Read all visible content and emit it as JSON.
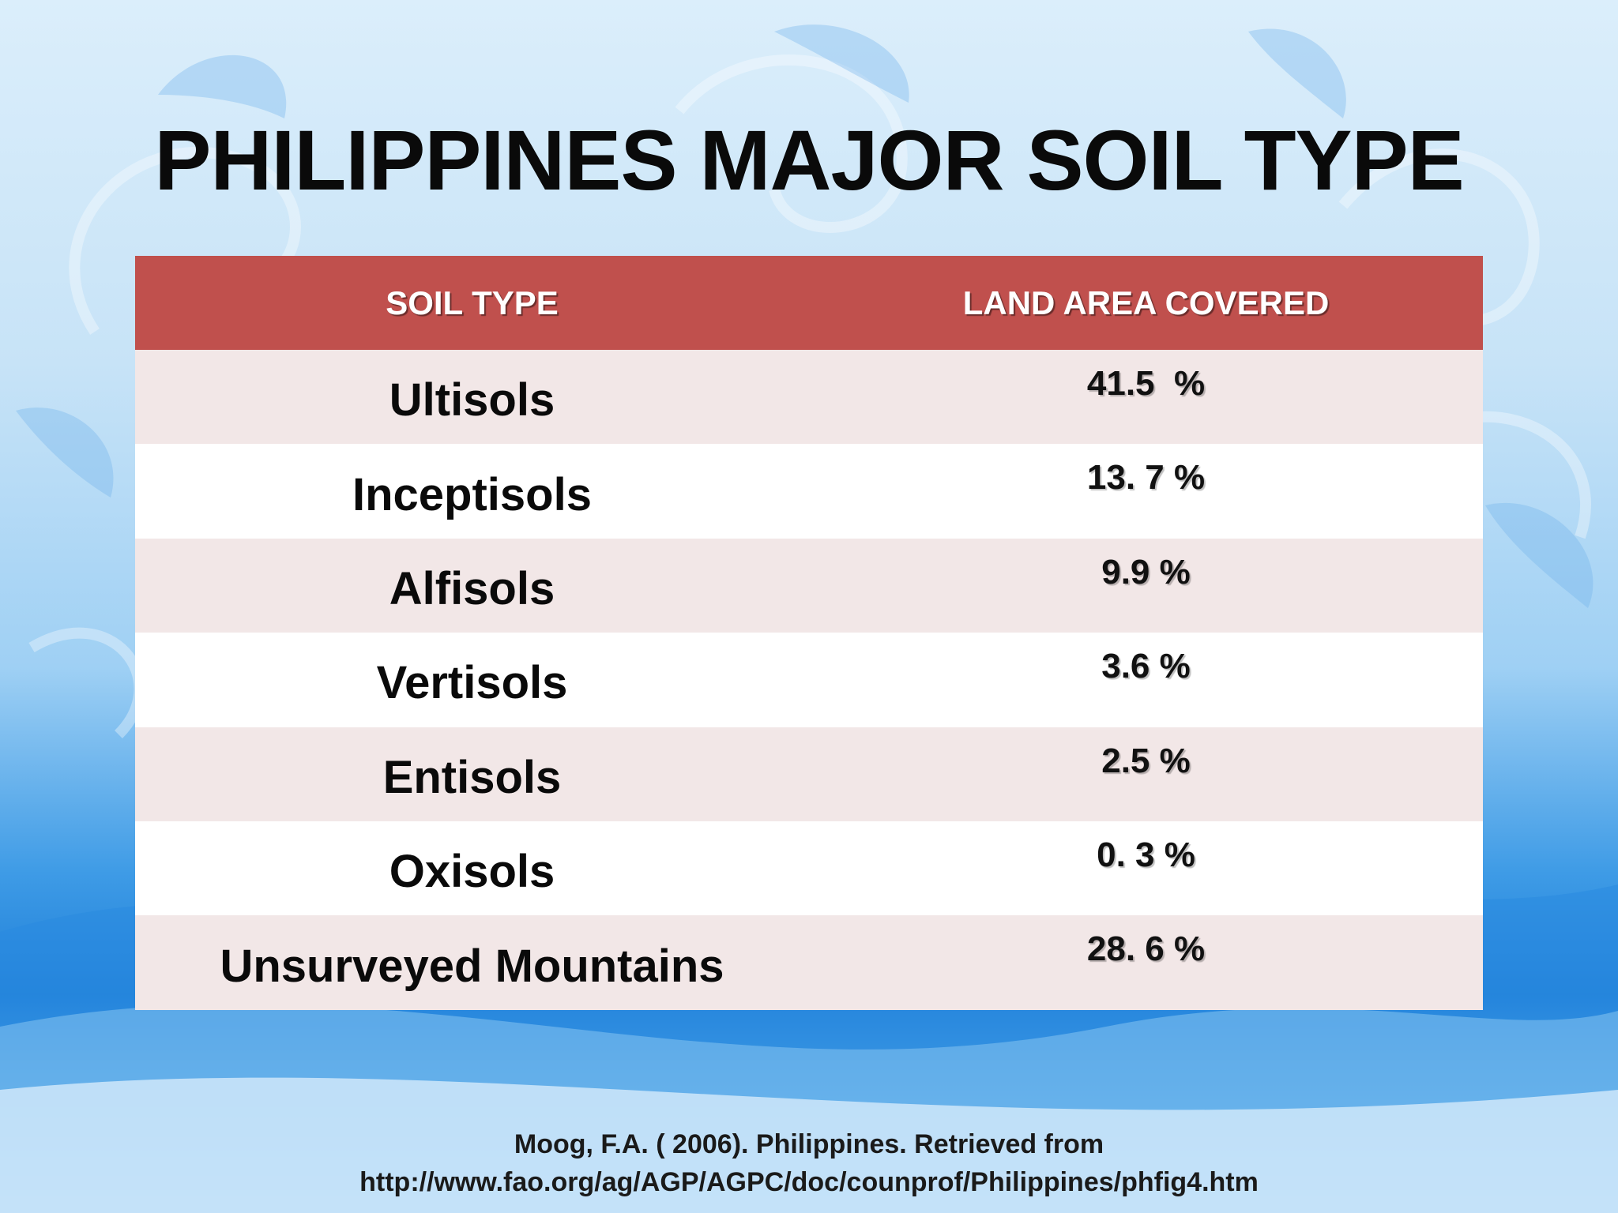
{
  "slide": {
    "title": "PHILIPPINES MAJOR SOIL TYPE"
  },
  "table": {
    "headers": [
      "SOIL TYPE",
      "LAND AREA COVERED"
    ],
    "header_color": "#c0504d",
    "rows": [
      {
        "soil": "Ultisols",
        "area": "41.5  %"
      },
      {
        "soil": "Inceptisols",
        "area": "13. 7 %"
      },
      {
        "soil": "Alfisols",
        "area": "9.9 %"
      },
      {
        "soil": "Vertisols",
        "area": "3.6 %"
      },
      {
        "soil": "Entisols",
        "area": "2.5 %"
      },
      {
        "soil": "Oxisols",
        "area": "0. 3 %"
      },
      {
        "soil": "Unsurveyed Mountains",
        "area": "28. 6 %"
      }
    ]
  },
  "citation": {
    "line1": "Moog, F.A. ( 2006). Philippines. Retrieved from",
    "line2": "http://www.fao.org/ag/AGP/AGPC/doc/counprof/Philippines/phfig4.htm"
  }
}
